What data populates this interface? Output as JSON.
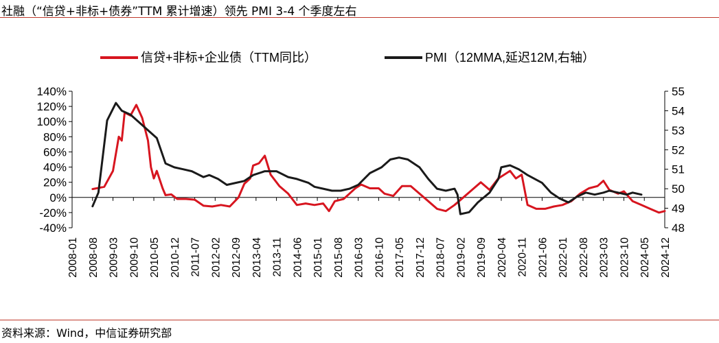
{
  "header": {
    "title": "社融（“信贷+非标+债券”TTM 累计增速）领先 PMI 3-4 个季度左右"
  },
  "footer": {
    "source": "资料来源：Wind，中信证券研究部"
  },
  "colors": {
    "series_red": "#d7151f",
    "series_black": "#1a1a1a",
    "rule": "#c0392b"
  },
  "chart_data": {
    "type": "line",
    "title": "社融（“信贷+非标+债券”TTM 累计增速）领先 PMI 3-4 个季度左右",
    "x_tick_labels": [
      "2008-01",
      "2008-08",
      "2009-03",
      "2009-10",
      "2010-05",
      "2010-12",
      "2011-07",
      "2012-02",
      "2012-09",
      "2013-04",
      "2013-11",
      "2014-06",
      "2015-01",
      "2015-08",
      "2016-03",
      "2016-10",
      "2017-05",
      "2017-12",
      "2018-07",
      "2019-02",
      "2019-09",
      "2020-04",
      "2020-11",
      "2021-06",
      "2022-01",
      "2022-08",
      "2023-03",
      "2023-10",
      "2024-05",
      "2024-12"
    ],
    "x_range": [
      "2008-01",
      "2024-12"
    ],
    "y_left": {
      "min": -40,
      "max": 140,
      "ticks": [
        -40,
        -20,
        0,
        20,
        40,
        60,
        80,
        100,
        120,
        140
      ],
      "unit": "%"
    },
    "y_right": {
      "min": 48,
      "max": 55,
      "ticks": [
        48,
        49,
        50,
        51,
        52,
        53,
        54,
        55
      ]
    },
    "legend_location": "top",
    "series": [
      {
        "name": "信贷+非标+企业债（TTM同比）",
        "axis": "left",
        "points": [
          [
            "2008-08",
            11
          ],
          [
            "2008-12",
            14
          ],
          [
            "2009-03",
            35
          ],
          [
            "2009-05",
            80
          ],
          [
            "2009-06",
            75
          ],
          [
            "2009-07",
            112
          ],
          [
            "2009-09",
            108
          ],
          [
            "2009-11",
            122
          ],
          [
            "2010-01",
            105
          ],
          [
            "2010-03",
            75
          ],
          [
            "2010-04",
            40
          ],
          [
            "2010-05",
            25
          ],
          [
            "2010-06",
            35
          ],
          [
            "2010-08",
            12
          ],
          [
            "2010-09",
            3
          ],
          [
            "2010-11",
            4
          ],
          [
            "2011-01",
            -2
          ],
          [
            "2011-04",
            -2
          ],
          [
            "2011-07",
            -3
          ],
          [
            "2011-10",
            -11
          ],
          [
            "2012-01",
            -12
          ],
          [
            "2012-04",
            -10
          ],
          [
            "2012-07",
            -12
          ],
          [
            "2012-10",
            0
          ],
          [
            "2012-12",
            18
          ],
          [
            "2013-02",
            25
          ],
          [
            "2013-03",
            42
          ],
          [
            "2013-05",
            45
          ],
          [
            "2013-07",
            55
          ],
          [
            "2013-09",
            30
          ],
          [
            "2013-12",
            15
          ],
          [
            "2014-03",
            5
          ],
          [
            "2014-06",
            -10
          ],
          [
            "2014-09",
            -8
          ],
          [
            "2014-12",
            -10
          ],
          [
            "2015-03",
            -8
          ],
          [
            "2015-05",
            -18
          ],
          [
            "2015-07",
            -5
          ],
          [
            "2015-10",
            -2
          ],
          [
            "2015-12",
            5
          ],
          [
            "2016-02",
            12
          ],
          [
            "2016-04",
            17
          ],
          [
            "2016-07",
            12
          ],
          [
            "2016-10",
            12
          ],
          [
            "2016-12",
            5
          ],
          [
            "2017-03",
            2
          ],
          [
            "2017-06",
            15
          ],
          [
            "2017-09",
            15
          ],
          [
            "2017-12",
            5
          ],
          [
            "2018-03",
            -5
          ],
          [
            "2018-06",
            -15
          ],
          [
            "2018-09",
            -18
          ],
          [
            "2018-12",
            -10
          ],
          [
            "2019-03",
            0
          ],
          [
            "2019-06",
            10
          ],
          [
            "2019-09",
            20
          ],
          [
            "2019-12",
            10
          ],
          [
            "2020-03",
            25
          ],
          [
            "2020-05",
            30
          ],
          [
            "2020-07",
            35
          ],
          [
            "2020-09",
            25
          ],
          [
            "2020-11",
            30
          ],
          [
            "2021-01",
            -10
          ],
          [
            "2021-04",
            -15
          ],
          [
            "2021-07",
            -15
          ],
          [
            "2021-10",
            -12
          ],
          [
            "2022-01",
            -10
          ],
          [
            "2022-04",
            -5
          ],
          [
            "2022-07",
            5
          ],
          [
            "2022-10",
            12
          ],
          [
            "2023-01",
            15
          ],
          [
            "2023-03",
            22
          ],
          [
            "2023-05",
            10
          ],
          [
            "2023-08",
            5
          ],
          [
            "2023-10",
            8
          ],
          [
            "2024-01",
            -5
          ],
          [
            "2024-04",
            -10
          ],
          [
            "2024-07",
            -15
          ],
          [
            "2024-10",
            -20
          ],
          [
            "2024-12",
            -18
          ]
        ]
      },
      {
        "name": "PMI（12MMA,延迟12M,右轴）",
        "axis": "right",
        "points": [
          [
            "2008-08",
            49.1
          ],
          [
            "2008-10",
            49.8
          ],
          [
            "2009-01",
            53.5
          ],
          [
            "2009-04",
            54.4
          ],
          [
            "2009-06",
            54.0
          ],
          [
            "2009-09",
            53.8
          ],
          [
            "2009-12",
            53.4
          ],
          [
            "2010-03",
            53.0
          ],
          [
            "2010-06",
            52.6
          ],
          [
            "2010-09",
            51.3
          ],
          [
            "2010-12",
            51.1
          ],
          [
            "2011-03",
            51.0
          ],
          [
            "2011-06",
            50.9
          ],
          [
            "2011-10",
            50.6
          ],
          [
            "2011-12",
            50.7
          ],
          [
            "2012-03",
            50.5
          ],
          [
            "2012-06",
            50.2
          ],
          [
            "2012-09",
            50.3
          ],
          [
            "2012-12",
            50.4
          ],
          [
            "2013-03",
            50.7
          ],
          [
            "2013-07",
            50.9
          ],
          [
            "2013-11",
            50.9
          ],
          [
            "2014-03",
            50.6
          ],
          [
            "2014-06",
            50.5
          ],
          [
            "2014-10",
            50.3
          ],
          [
            "2014-12",
            50.1
          ],
          [
            "2015-03",
            50.0
          ],
          [
            "2015-06",
            49.9
          ],
          [
            "2015-09",
            49.9
          ],
          [
            "2015-12",
            50.0
          ],
          [
            "2016-03",
            50.2
          ],
          [
            "2016-07",
            50.8
          ],
          [
            "2016-11",
            51.1
          ],
          [
            "2017-02",
            51.5
          ],
          [
            "2017-05",
            51.6
          ],
          [
            "2017-08",
            51.5
          ],
          [
            "2017-12",
            51.1
          ],
          [
            "2018-03",
            50.5
          ],
          [
            "2018-06",
            50.0
          ],
          [
            "2018-09",
            49.9
          ],
          [
            "2018-12",
            50.0
          ],
          [
            "2019-01",
            49.7
          ],
          [
            "2019-02",
            48.7
          ],
          [
            "2019-05",
            48.8
          ],
          [
            "2019-08",
            49.3
          ],
          [
            "2019-12",
            49.8
          ],
          [
            "2020-03",
            50.5
          ],
          [
            "2020-04",
            51.1
          ],
          [
            "2020-07",
            51.2
          ],
          [
            "2020-10",
            51.0
          ],
          [
            "2021-01",
            50.7
          ],
          [
            "2021-06",
            50.3
          ],
          [
            "2021-09",
            49.8
          ],
          [
            "2021-12",
            49.5
          ],
          [
            "2022-03",
            49.3
          ],
          [
            "2022-06",
            49.6
          ],
          [
            "2022-09",
            49.8
          ],
          [
            "2022-12",
            49.7
          ],
          [
            "2023-03",
            49.8
          ],
          [
            "2023-05",
            49.9
          ],
          [
            "2023-08",
            49.8
          ],
          [
            "2023-11",
            49.7
          ],
          [
            "2024-01",
            49.8
          ],
          [
            "2024-04",
            49.7
          ]
        ]
      }
    ]
  }
}
